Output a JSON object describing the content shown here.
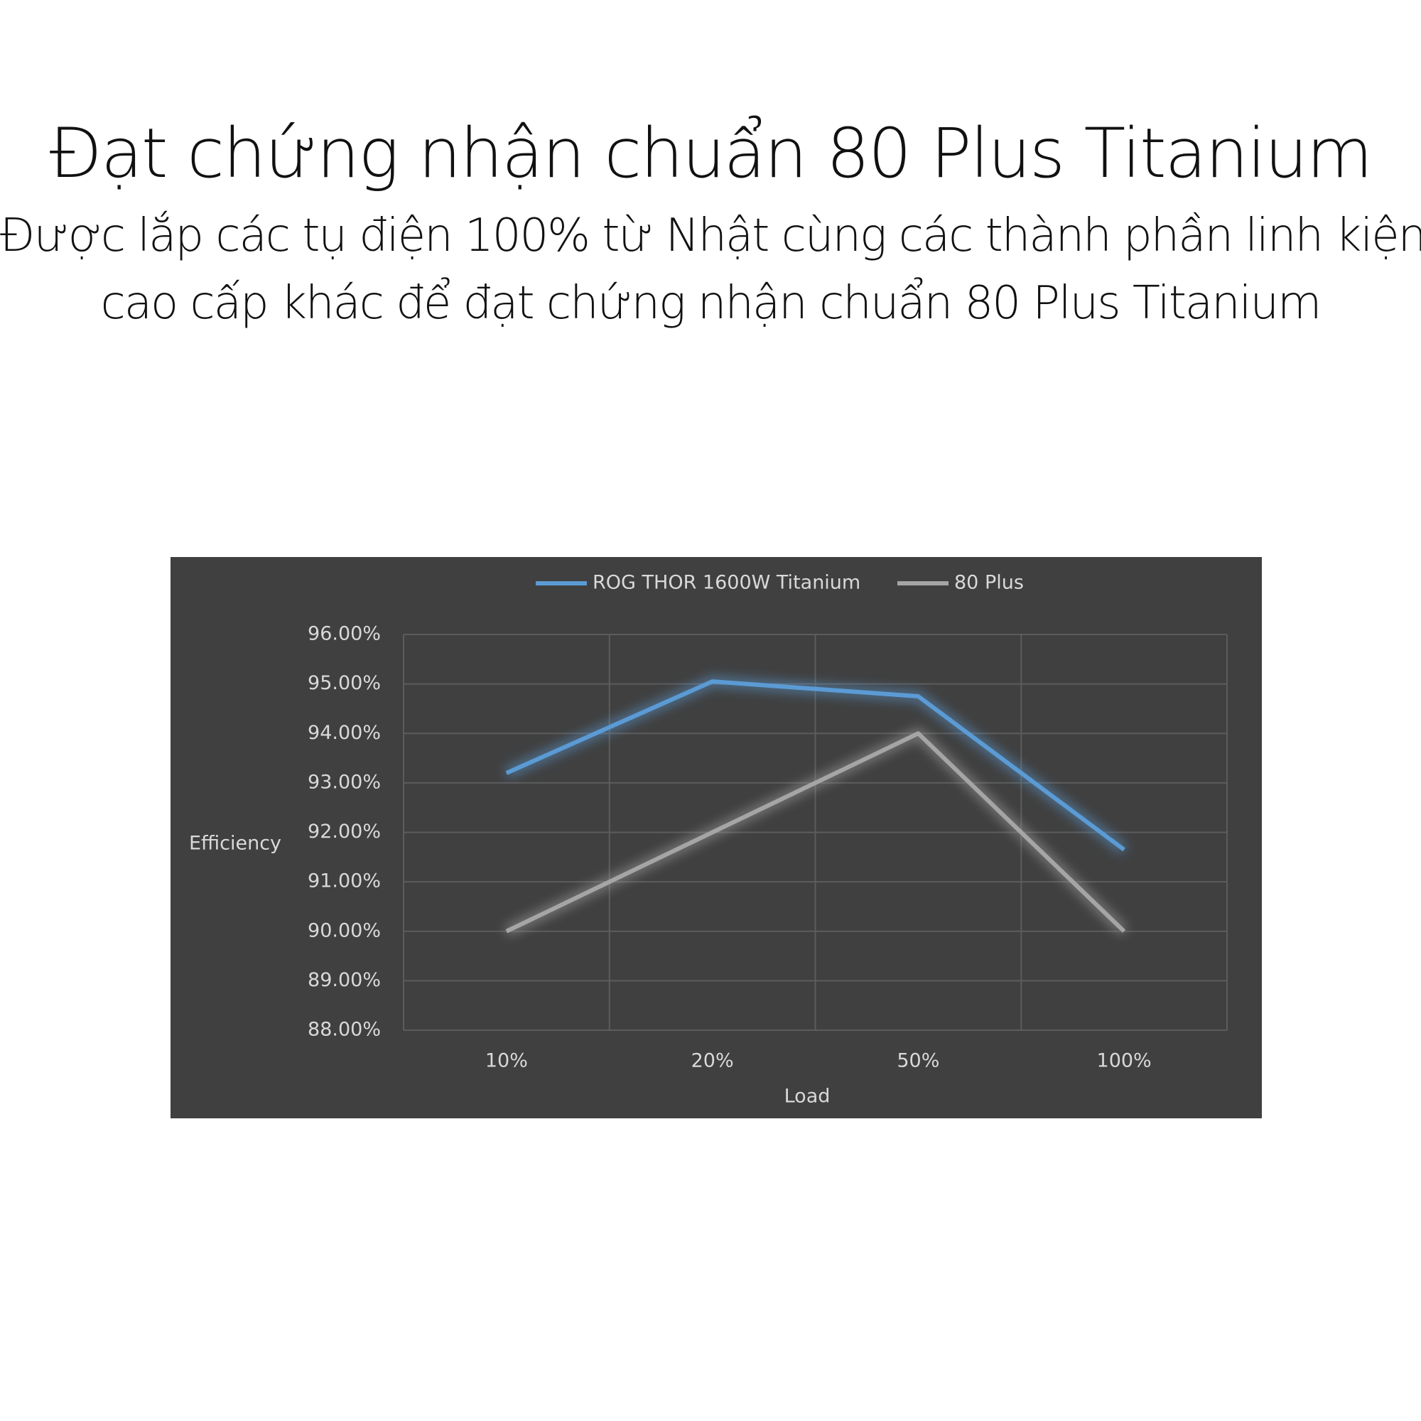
{
  "header": {
    "title": "Đạt chứng nhận chuẩn 80 Plus Titanium",
    "subtitle_lines": [
      "Được lắp các tụ điện 100% từ Nhật cùng các thành phần linh kiện",
      "cao cấp khác để đạt chứng nhận chuẩn 80 Plus Titanium"
    ]
  },
  "chart_data": {
    "type": "line",
    "x_label": "Load",
    "y_label": "Efficiency",
    "categories": [
      "10%",
      "20%",
      "50%",
      "100%"
    ],
    "series": [
      {
        "name": "ROG THOR 1600W Titanium",
        "color": "#5b9bd5",
        "values": [
          93.2,
          95.05,
          94.75,
          91.65
        ]
      },
      {
        "name": "80 Plus",
        "color": "#a5a5a5",
        "values": [
          90,
          92,
          94,
          90
        ]
      }
    ],
    "ylim": [
      88,
      96
    ],
    "yticks": [
      {
        "value": 88,
        "label": "88.00%"
      },
      {
        "value": 89,
        "label": "89.00%"
      },
      {
        "value": 90,
        "label": "90.00%"
      },
      {
        "value": 91,
        "label": "91.00%"
      },
      {
        "value": 92,
        "label": "92.00%"
      },
      {
        "value": 93,
        "label": "93.00%"
      },
      {
        "value": 94,
        "label": "94.00%"
      },
      {
        "value": 95,
        "label": "95.00%"
      },
      {
        "value": 96,
        "label": "96.00%"
      }
    ],
    "grid": true,
    "legend": "top"
  }
}
